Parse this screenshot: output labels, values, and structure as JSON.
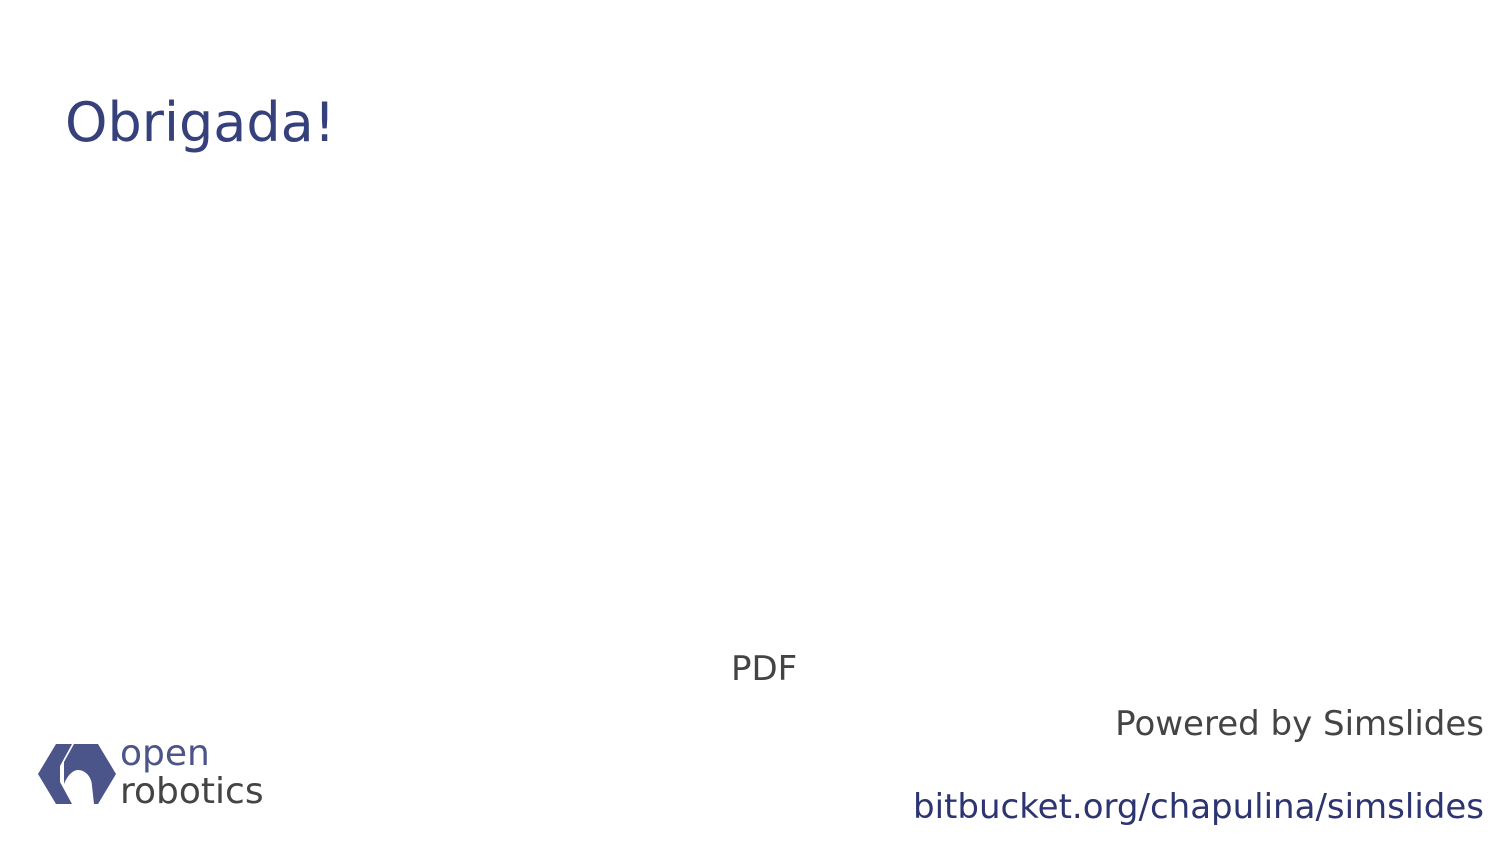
{
  "slide": {
    "title": "Obrigada!",
    "pdf_label": "PDF",
    "powered_by": "Powered by Simslides",
    "repo_link": "bitbucket.org/chapulina/simslides"
  },
  "logo": {
    "line1": "open",
    "line2": "robotics",
    "icon": "open-robotics-logo-mark"
  },
  "colors": {
    "title": "#36407a",
    "link": "#2d3470",
    "text": "#444444",
    "logo_mark": "#4c558a"
  }
}
